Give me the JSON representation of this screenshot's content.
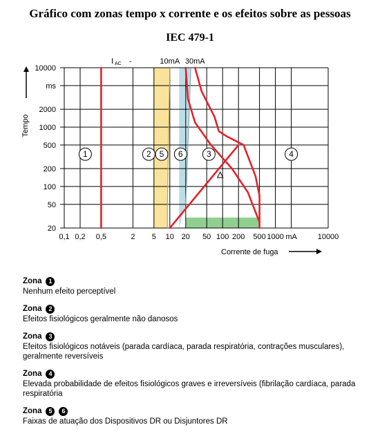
{
  "title": "Gráfico com zonas tempo x corrente e os efeitos sobre as pessoas",
  "subtitle": "IEC 479-1",
  "chart_data": {
    "type": "line",
    "x_scale": "log",
    "y_scale": "log",
    "xlim": [
      0.1,
      10000
    ],
    "ylim": [
      20,
      10000
    ],
    "xlabel": "Corrente de fuga",
    "x_unit": "mA",
    "ylabel": "Tempo",
    "y_unit": "ms",
    "x_ticks": [
      {
        "v": 0.1,
        "l": "0,1"
      },
      {
        "v": 0.2,
        "l": "0,2"
      },
      {
        "v": 0.5,
        "l": "0,5"
      },
      {
        "v": 2,
        "l": "2"
      },
      {
        "v": 5,
        "l": "5"
      },
      {
        "v": 10,
        "l": "10"
      },
      {
        "v": 20,
        "l": "20"
      },
      {
        "v": 50,
        "l": "50"
      },
      {
        "v": 100,
        "l": "100"
      },
      {
        "v": 200,
        "l": "200"
      },
      {
        "v": 500,
        "l": "500"
      },
      {
        "v": 1000,
        "l": "1000"
      },
      {
        "v": 10000,
        "l": "10000"
      }
    ],
    "x_unit_at": 2000,
    "y_ticks": [
      {
        "v": 20,
        "l": "20"
      },
      {
        "v": 50,
        "l": "50"
      },
      {
        "v": 100,
        "l": "100"
      },
      {
        "v": 200,
        "l": "200"
      },
      {
        "v": 500,
        "l": "500"
      },
      {
        "v": 1000,
        "l": "1000"
      },
      {
        "v": 2000,
        "l": "2000"
      },
      {
        "v": 10000,
        "l": "10000"
      }
    ],
    "y_unit_at": 5000,
    "x_grid": [
      0.1,
      0.2,
      0.5,
      2,
      5,
      10,
      20,
      50,
      100,
      200,
      500,
      1000,
      2000,
      10000
    ],
    "y_grid": [
      20,
      50,
      100,
      200,
      500,
      1000,
      2000,
      5000,
      10000
    ],
    "series": [
      {
        "color": "#e0232a",
        "points": [
          [
            0.5,
            20
          ],
          [
            0.5,
            10000
          ]
        ]
      },
      {
        "color": "#e0232a",
        "points": [
          [
            20,
            10000
          ],
          [
            22,
            3000
          ],
          [
            30,
            1200
          ],
          [
            60,
            500
          ],
          [
            150,
            200
          ],
          [
            300,
            80
          ],
          [
            500,
            25
          ]
        ]
      },
      {
        "color": "#e0232a",
        "points": [
          [
            30,
            10000
          ],
          [
            40,
            4000
          ],
          [
            70,
            1500
          ],
          [
            85,
            850
          ],
          [
            120,
            700
          ],
          [
            250,
            500
          ],
          [
            420,
            150
          ],
          [
            500,
            70
          ],
          [
            500,
            20
          ]
        ]
      },
      {
        "color": "#e0232a",
        "points": [
          [
            10,
            20
          ],
          [
            200,
            500
          ]
        ]
      }
    ],
    "bands": [
      {
        "name": "zone-5",
        "fill": "#f9e39a",
        "stroke": "#b9a25a",
        "left": [
          [
            5,
            10000
          ],
          [
            5,
            20
          ]
        ],
        "right": [
          [
            9,
            20
          ],
          [
            9,
            50
          ],
          [
            10,
            10000
          ]
        ]
      },
      {
        "name": "zone-6",
        "fill": "#bcdde7",
        "stroke": "#8aa8b0",
        "left": [
          [
            15,
            10000
          ],
          [
            15,
            20
          ]
        ],
        "right": [
          [
            20,
            50
          ],
          [
            25,
            10000
          ]
        ]
      }
    ],
    "green_band": {
      "fill": "#8fcf90",
      "points": [
        [
          20,
          30
        ],
        [
          500,
          30
        ],
        [
          500,
          20
        ],
        [
          20,
          20
        ]
      ]
    },
    "zone_labels": [
      {
        "n": "1",
        "x": 0.25,
        "y": 350
      },
      {
        "n": "2",
        "x": 4,
        "y": 350
      },
      {
        "n": "5",
        "x": 7,
        "y": 350
      },
      {
        "n": "6",
        "x": 16,
        "y": 350
      },
      {
        "n": "3",
        "x": 55,
        "y": 350
      },
      {
        "n": "4",
        "x": 2000,
        "y": 350
      }
    ],
    "iac_label": "I",
    "iac_sub": "AC",
    "iac_dash": "-",
    "band_labels": [
      {
        "text": "10mA",
        "x": 10
      },
      {
        "text": "30mA",
        "x": 30
      }
    ]
  },
  "zones": [
    {
      "label": "Zona",
      "number": "1",
      "description": "Nenhum efeito perceptível"
    },
    {
      "label": "Zona",
      "number": "2",
      "description": "Efeitos fisiológicos geralmente não danosos"
    },
    {
      "label": "Zona",
      "number": "3",
      "description": "Efeitos fisiológicos notáveis (parada cardíaca, parada respiratória, contrações musculares), geralmente reversíveis"
    },
    {
      "label": "Zona",
      "number": "4",
      "description": "Elevada probabilidade de efeitos fisiológicos graves e irreversíveis (fibrilação cardíaca, parada respiratória"
    },
    {
      "label": "Zona",
      "number": "5",
      "number2": "6",
      "description": "Faixas de atuação dos Dispositivos DR ou Disjuntores DR"
    }
  ]
}
